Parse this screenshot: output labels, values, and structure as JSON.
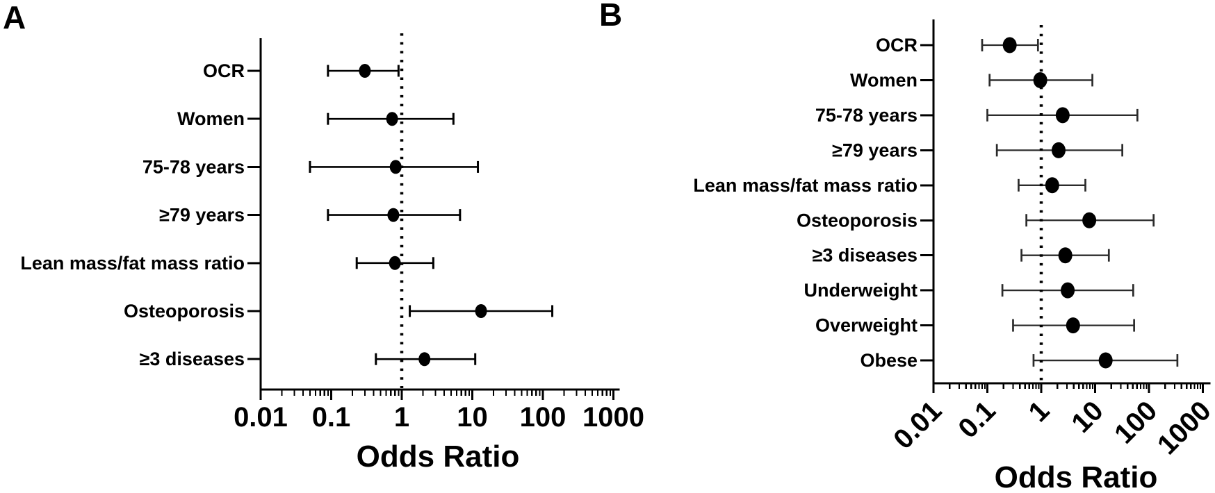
{
  "figure": {
    "bg_color": "#ffffff",
    "ink_color": "#000000",
    "marker_color": "#000000",
    "panel_a_error_bar_color": "#000000",
    "panel_b_error_bar_color": "#2b2b2b"
  },
  "chart_data": [
    {
      "panel_label": "A",
      "type": "scatter",
      "subtype": "forest-plot",
      "title": "",
      "xlabel": "Odds Ratio",
      "ylabel": "",
      "x_scale": "log",
      "xlim": [
        0.01,
        1000
      ],
      "x_ticks": [
        0.01,
        0.1,
        1,
        10,
        100,
        1000
      ],
      "x_tick_labels": [
        "0.01",
        "0.1",
        "1",
        "10",
        "100",
        "1000"
      ],
      "x_tick_rotation": 0,
      "grid": false,
      "legend": "none",
      "reference_line_x": 1,
      "reference_line_style": "dotted",
      "rows": [
        {
          "label": "OCR",
          "or": 0.3,
          "ci_low": 0.09,
          "ci_high": 0.9
        },
        {
          "label": "Women",
          "or": 0.73,
          "ci_low": 0.09,
          "ci_high": 5.4
        },
        {
          "label": "75-78 years",
          "or": 0.82,
          "ci_low": 0.05,
          "ci_high": 12
        },
        {
          "label": "≥79 years",
          "or": 0.76,
          "ci_low": 0.09,
          "ci_high": 6.7
        },
        {
          "label": "Lean mass/fat mass ratio",
          "or": 0.8,
          "ci_low": 0.23,
          "ci_high": 2.8
        },
        {
          "label": "Osteoporosis",
          "or": 13.3,
          "ci_low": 1.3,
          "ci_high": 136
        },
        {
          "label": "≥3 diseases",
          "or": 2.1,
          "ci_low": 0.43,
          "ci_high": 11
        }
      ]
    },
    {
      "panel_label": "B",
      "type": "scatter",
      "subtype": "forest-plot",
      "title": "",
      "xlabel": "Odds Ratio",
      "ylabel": "",
      "x_scale": "log",
      "xlim": [
        0.01,
        1000
      ],
      "x_ticks": [
        0.01,
        0.1,
        1,
        10,
        100,
        1000
      ],
      "x_tick_labels": [
        "0.01",
        "0.1",
        "1",
        "10",
        "100",
        "1000"
      ],
      "x_tick_rotation": -45,
      "grid": false,
      "legend": "none",
      "reference_line_x": 1,
      "reference_line_style": "dotted",
      "rows": [
        {
          "label": "OCR",
          "or": 0.26,
          "ci_low": 0.08,
          "ci_high": 0.87
        },
        {
          "label": "Women",
          "or": 0.96,
          "ci_low": 0.11,
          "ci_high": 8.9
        },
        {
          "label": "75-78 years",
          "or": 2.5,
          "ci_low": 0.1,
          "ci_high": 61
        },
        {
          "label": "≥79 years",
          "or": 2.1,
          "ci_low": 0.15,
          "ci_high": 32
        },
        {
          "label": "Lean mass/fat mass ratio",
          "or": 1.6,
          "ci_low": 0.38,
          "ci_high": 6.6
        },
        {
          "label": "Osteoporosis",
          "or": 7.8,
          "ci_low": 0.53,
          "ci_high": 122
        },
        {
          "label": "≥3 diseases",
          "or": 2.8,
          "ci_low": 0.43,
          "ci_high": 18
        },
        {
          "label": "Underweight",
          "or": 3.1,
          "ci_low": 0.19,
          "ci_high": 51
        },
        {
          "label": "Overweight",
          "or": 3.9,
          "ci_low": 0.3,
          "ci_high": 53
        },
        {
          "label": "Obese",
          "or": 15.7,
          "ci_low": 0.72,
          "ci_high": 337
        }
      ]
    }
  ]
}
